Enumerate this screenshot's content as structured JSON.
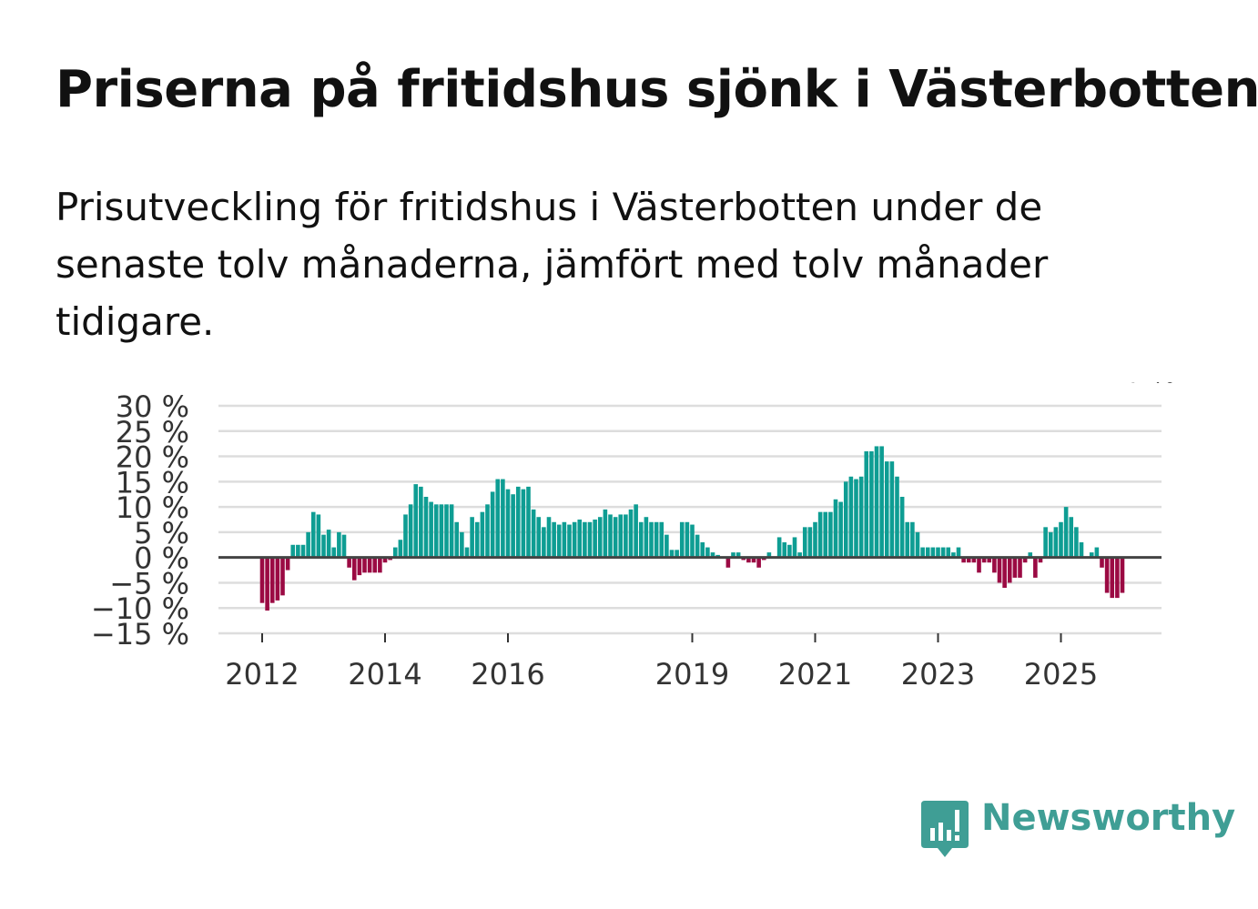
{
  "title": "Priserna på fritidshus sjönk i Västerbotten",
  "subtitle": "Prisutveckling för fritidshus i Västerbotten under de senaste tolv månaderna, jämfört med tolv månader tidigare.",
  "colors": {
    "positive": "#0e9d93",
    "negative": "#9b0a43",
    "grid": "#dddddd",
    "zero_line": "#444444",
    "brand": "#3f9e95"
  },
  "brand": {
    "name": "Newsworthy",
    "icon": "bar-chart-speech-bubble-icon"
  },
  "chart_data": {
    "type": "bar",
    "title": "Priserna på fritidshus sjönk i Västerbotten",
    "ylabel": "",
    "xlabel": "",
    "ylim": [
      -15,
      30
    ],
    "yticks": [
      "30 %",
      "25 %",
      "20 %",
      "15 %",
      "10 %",
      "5 %",
      "0 %",
      "−5 %",
      "−10 %",
      "−15 %"
    ],
    "ytick_values": [
      30,
      25,
      20,
      15,
      10,
      5,
      0,
      -5,
      -10,
      -15
    ],
    "xticks": [
      {
        "label": "2012",
        "index": 0
      },
      {
        "label": "2014",
        "index": 24
      },
      {
        "label": "2016",
        "index": 48
      },
      {
        "label": "2019",
        "index": 84
      },
      {
        "label": "2021",
        "index": 108
      },
      {
        "label": "2023",
        "index": 132
      },
      {
        "label": "2025",
        "index": 156
      }
    ],
    "series": [
      {
        "name": "Prisutveckling",
        "start": "2012-01",
        "values": [
          -9,
          -10.5,
          -9,
          -8.5,
          -7.5,
          -2.5,
          2.5,
          2.5,
          2.5,
          5,
          9,
          8.5,
          4.5,
          5.5,
          2,
          5,
          4.5,
          -2,
          -4.5,
          -3.5,
          -3,
          -3,
          -3,
          -3,
          -1,
          -0.5,
          2,
          3.5,
          8.5,
          10.5,
          14.5,
          14,
          12,
          11,
          10.5,
          10.5,
          10.5,
          10.5,
          7,
          5,
          2,
          8,
          7,
          9,
          10.5,
          13,
          15.5,
          15.5,
          13.5,
          12.5,
          14,
          13.5,
          14,
          9.5,
          8,
          6,
          8,
          7,
          6.5,
          7,
          6.5,
          7,
          7.5,
          7,
          7,
          7.5,
          8,
          9.5,
          8.5,
          8,
          8.5,
          8.5,
          9.5,
          10.5,
          7,
          8,
          7,
          7,
          7,
          4.5,
          1.5,
          1.5,
          7,
          7,
          6.5,
          4.5,
          3,
          2,
          1,
          0.5,
          0,
          -2,
          1,
          1,
          -0.5,
          -1,
          -1,
          -2,
          -0.5,
          1,
          0,
          4,
          3,
          2.5,
          4,
          1,
          6,
          6,
          7,
          9,
          9,
          9,
          11.5,
          11,
          15,
          16,
          15.5,
          16,
          21,
          21,
          22,
          22,
          19,
          19,
          16,
          12,
          7,
          7,
          5,
          2,
          2,
          2,
          2,
          2,
          2,
          1,
          2,
          -1,
          -1,
          -1,
          -3,
          -1,
          -1,
          -3,
          -5,
          -6,
          -5,
          -4,
          -4,
          -1,
          1,
          -4,
          -1,
          6,
          5,
          6,
          7,
          10,
          8,
          6,
          3,
          0,
          1,
          2,
          -2,
          -7,
          -8,
          -8,
          -7
        ]
      }
    ],
    "annotations": [
      {
        "text": "−7 %",
        "index": 172
      }
    ]
  }
}
